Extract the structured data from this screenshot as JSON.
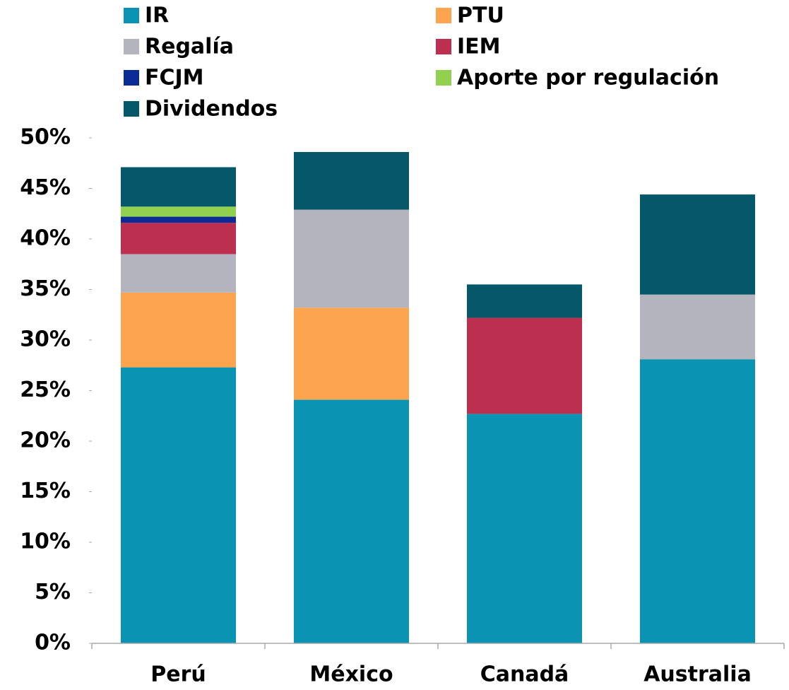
{
  "chart_data": {
    "type": "stacked_bar",
    "categories": [
      "Perú",
      "México",
      "Canadá",
      "Australia"
    ],
    "series": [
      {
        "name": "IR",
        "color": "#0a93b2",
        "values": [
          27.3,
          24.1,
          22.7,
          28.1
        ]
      },
      {
        "name": "PTU",
        "color": "#fca54e",
        "values": [
          7.4,
          9.1,
          0,
          0
        ]
      },
      {
        "name": "Regalía",
        "color": "#b4b4be",
        "values": [
          3.8,
          9.7,
          0,
          6.4
        ]
      },
      {
        "name": "IEM",
        "color": "#bc2f4e",
        "values": [
          3.1,
          0,
          9.5,
          0
        ]
      },
      {
        "name": "FCJM",
        "color": "#0b2b96",
        "values": [
          0.6,
          0,
          0,
          0
        ]
      },
      {
        "name": "Aporte por regulación",
        "color": "#92d050",
        "values": [
          1.0,
          0,
          0,
          0
        ]
      },
      {
        "name": "Dividendos",
        "color": "#05586a",
        "values": [
          3.9,
          5.7,
          3.3,
          9.9
        ]
      }
    ],
    "ylim": [
      0,
      50
    ],
    "yticks": [
      {
        "value": 0,
        "label": "0%"
      },
      {
        "value": 5,
        "label": "5%"
      },
      {
        "value": 10,
        "label": "10%"
      },
      {
        "value": 15,
        "label": "15%"
      },
      {
        "value": 20,
        "label": "20%"
      },
      {
        "value": 25,
        "label": "25%"
      },
      {
        "value": 30,
        "label": "30%"
      },
      {
        "value": 35,
        "label": "35%"
      },
      {
        "value": 40,
        "label": "40%"
      },
      {
        "value": 45,
        "label": "45%"
      },
      {
        "value": 50,
        "label": "50%"
      }
    ],
    "legend": "top"
  }
}
